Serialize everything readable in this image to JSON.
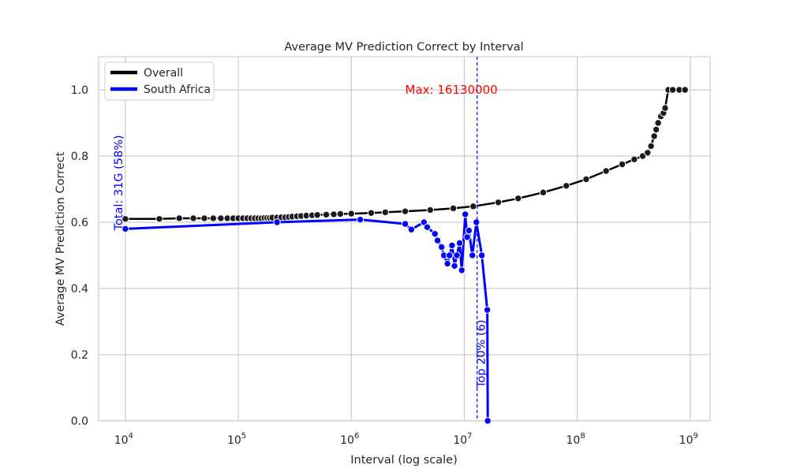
{
  "chart_data": {
    "type": "line",
    "title": "Average MV Prediction Correct by Interval",
    "xlabel": "Interval (log scale)",
    "ylabel": "Average MV Prediction Correct",
    "x_scale": "log",
    "xlim": [
      5800,
      1500000000
    ],
    "ylim": [
      0,
      1.1
    ],
    "grid": true,
    "legend_position": "top-left",
    "x_ticks": [
      {
        "value": 10000,
        "base": "10",
        "exp": "4"
      },
      {
        "value": 100000,
        "base": "10",
        "exp": "5"
      },
      {
        "value": 1000000,
        "base": "10",
        "exp": "6"
      },
      {
        "value": 10000000,
        "base": "10",
        "exp": "7"
      },
      {
        "value": 100000000,
        "base": "10",
        "exp": "8"
      },
      {
        "value": 1000000000,
        "base": "10",
        "exp": "9"
      }
    ],
    "y_ticks": [
      "0.0",
      "0.2",
      "0.4",
      "0.6",
      "0.8",
      "1.0"
    ],
    "series": [
      {
        "name": "Overall",
        "color": "#000000",
        "marker_color": "#1a1a1a",
        "x": [
          10000,
          20000,
          30000,
          40000,
          50000,
          60000,
          70000,
          80000,
          90000,
          100000,
          110000,
          120000,
          130000,
          140000,
          150000,
          160000,
          170000,
          180000,
          190000,
          200000,
          220000,
          240000,
          260000,
          280000,
          300000,
          330000,
          360000,
          400000,
          450000,
          500000,
          600000,
          700000,
          800000,
          1000000,
          1500000,
          2000000,
          3000000,
          5000000,
          8000000,
          12000000,
          20000000,
          30000000,
          50000000,
          80000000,
          120000000,
          180000000,
          250000000,
          320000000,
          380000000,
          420000000,
          450000000,
          480000000,
          500000000,
          520000000,
          550000000,
          580000000,
          600000000,
          640000000,
          700000000,
          800000000,
          900000000
        ],
        "y": [
          0.61,
          0.61,
          0.612,
          0.612,
          0.612,
          0.612,
          0.612,
          0.612,
          0.612,
          0.612,
          0.612,
          0.612,
          0.612,
          0.612,
          0.612,
          0.612,
          0.613,
          0.613,
          0.613,
          0.614,
          0.614,
          0.615,
          0.615,
          0.616,
          0.617,
          0.618,
          0.619,
          0.62,
          0.621,
          0.622,
          0.623,
          0.624,
          0.625,
          0.626,
          0.628,
          0.63,
          0.633,
          0.637,
          0.642,
          0.648,
          0.66,
          0.672,
          0.69,
          0.71,
          0.73,
          0.755,
          0.775,
          0.79,
          0.8,
          0.81,
          0.83,
          0.86,
          0.88,
          0.9,
          0.92,
          0.93,
          0.945,
          1.0,
          1.0,
          1.0,
          1.0
        ]
      },
      {
        "name": "South Africa",
        "color": "#0000ff",
        "marker_color": "#0000ff",
        "x": [
          10000,
          220000,
          1200000,
          3000000,
          3400000,
          4400000,
          4700000,
          5500000,
          5800000,
          6300000,
          6600000,
          7100000,
          7400000,
          7800000,
          8200000,
          8600000,
          9100000,
          9500000,
          10200000,
          10600000,
          11000000,
          11800000,
          12800000,
          14300000,
          16000000,
          16130000
        ],
        "y": [
          0.58,
          0.6,
          0.608,
          0.595,
          0.578,
          0.6,
          0.585,
          0.565,
          0.545,
          0.525,
          0.5,
          0.475,
          0.5,
          0.53,
          0.468,
          0.5,
          0.537,
          0.455,
          0.624,
          0.555,
          0.575,
          0.5,
          0.6,
          0.5,
          0.335,
          0.0
        ]
      }
    ],
    "annotations": {
      "vline_x": 13000000,
      "max_label": "Max: 16130000",
      "max_label_x": 3000000,
      "max_label_y": 1.0,
      "max_label_color": "#ff0000",
      "total_label": "Total: 31G (58%)",
      "total_label_x": 8800,
      "total_label_color": "#0000ff",
      "top_label": "Top 20% (6)",
      "top_label_color": "#0000ff"
    }
  }
}
